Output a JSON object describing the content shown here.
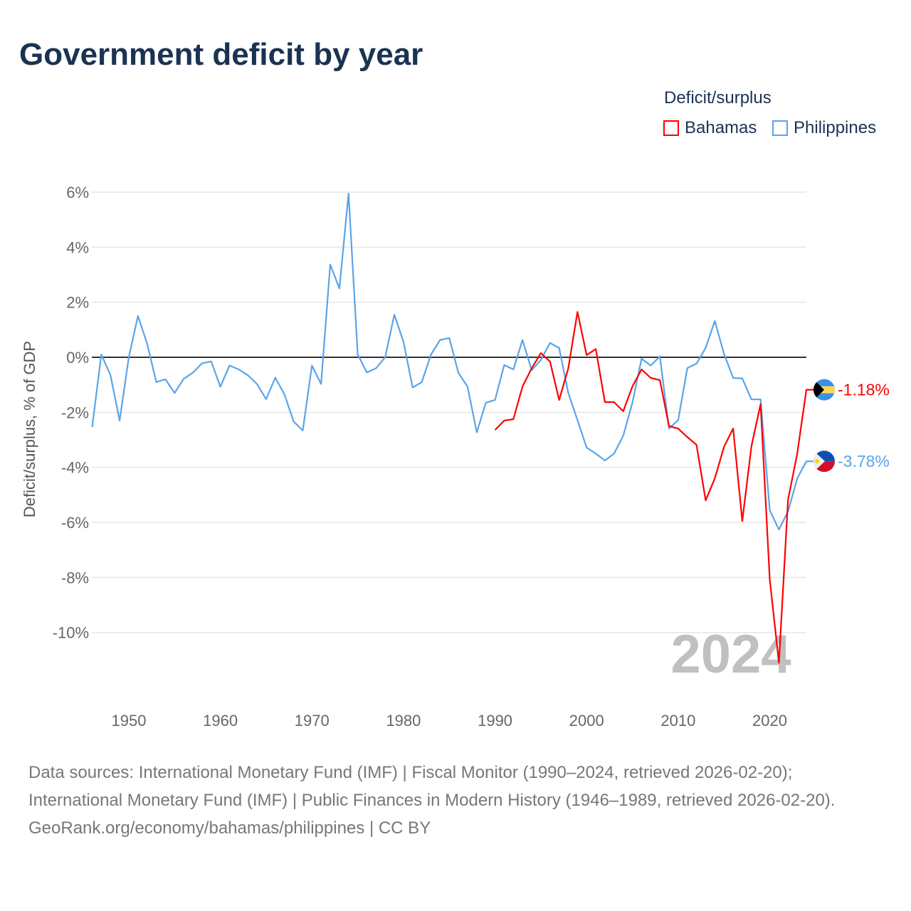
{
  "title": "Government deficit by year",
  "legend": {
    "title": "Deficit/surplus"
  },
  "watermark_year": "2024",
  "footer": {
    "sources": "Data sources: International Monetary Fund (IMF) | Fiscal Monitor (1990–2024, retrieved 2026-02-20); International Monetary Fund (IMF) | Public Finances in Modern History (1946–1989, retrieved 2026-02-20).",
    "credit": "GeoRank.org/economy/bahamas/philippines | CC BY"
  },
  "chart_data": {
    "type": "line",
    "title": "Government deficit by year",
    "xlabel": "",
    "ylabel": "Deficit/surplus, % of GDP",
    "xlim": [
      1946,
      2024
    ],
    "ylim": [
      -11.2,
      6.2
    ],
    "xticks": [
      "1950",
      "1960",
      "1970",
      "1980",
      "1990",
      "2000",
      "2010",
      "2020"
    ],
    "yticks": [
      "6%",
      "4%",
      "2%",
      "0%",
      "-2%",
      "-4%",
      "-6%",
      "-8%",
      "-10%"
    ],
    "ytick_values": [
      6,
      4,
      2,
      0,
      -2,
      -4,
      -6,
      -8,
      -10
    ],
    "grid": true,
    "legend_position": "top-right",
    "series": [
      {
        "name": "Bahamas",
        "color": "#ff0000",
        "end_label": "-1.18%",
        "start": 1990,
        "values": [
          -2.64,
          -2.3,
          -2.25,
          -1.06,
          -0.4,
          0.15,
          -0.15,
          -1.55,
          -0.4,
          1.65,
          0.08,
          0.3,
          -1.63,
          -1.63,
          -1.96,
          -1.06,
          -0.44,
          -0.75,
          -0.83,
          -2.5,
          -2.59,
          -2.9,
          -3.18,
          -5.2,
          -4.4,
          -3.26,
          -2.59,
          -5.95,
          -3.23,
          -1.7,
          -8.07,
          -11.1,
          -5.17,
          -3.5,
          -1.18
        ]
      },
      {
        "name": "Philippines",
        "color": "#5ba4ea",
        "end_label": "-3.78%",
        "start": 1946,
        "values": [
          -2.53,
          0.1,
          -0.65,
          -2.3,
          0.0,
          1.5,
          0.5,
          -0.9,
          -0.8,
          -1.3,
          -0.78,
          -0.56,
          -0.22,
          -0.15,
          -1.07,
          -0.3,
          -0.44,
          -0.65,
          -0.97,
          -1.52,
          -0.74,
          -1.35,
          -2.33,
          -2.66,
          -0.3,
          -0.97,
          3.37,
          2.5,
          5.95,
          0.1,
          -0.55,
          -0.4,
          0.0,
          1.55,
          0.56,
          -1.1,
          -0.9,
          0.1,
          0.63,
          0.7,
          -0.57,
          -1.07,
          -2.73,
          -1.65,
          -1.55,
          -0.28,
          -0.44,
          0.63,
          -0.47,
          -0.1,
          0.52,
          0.34,
          -1.3,
          -2.28,
          -3.28,
          -3.5,
          -3.75,
          -3.5,
          -2.85,
          -1.65,
          -0.05,
          -0.3,
          0.03,
          -2.59,
          -2.28,
          -0.39,
          -0.23,
          0.34,
          1.32,
          0.13,
          -0.75,
          -0.77,
          -1.53,
          -1.53,
          -5.56,
          -6.26,
          -5.6,
          -4.4,
          -3.78
        ]
      }
    ]
  }
}
